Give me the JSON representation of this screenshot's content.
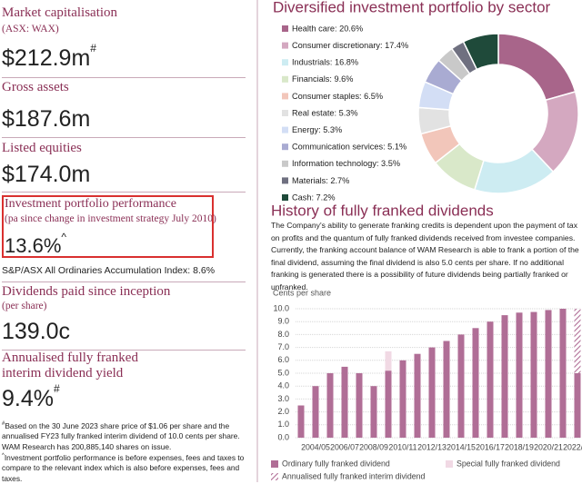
{
  "left": {
    "stats": [
      {
        "label": "Market capitalisation",
        "sublabel": "(ASX: WAX)",
        "value": "$212.9m",
        "sup": "#"
      },
      {
        "label": "Gross assets",
        "value": "$187.6m"
      },
      {
        "label": "Listed equities",
        "value": "$174.0m"
      },
      {
        "label": "Investment portfolio performance",
        "sublabel": "(pa since change in investment strategy July 2010)",
        "value": "13.6%",
        "sup": "^",
        "note": "S&P/ASX All Ordinaries Accumulation Index: 8.6%"
      },
      {
        "label": "Dividends paid since inception",
        "sublabel": "(per share)",
        "value": "139.0c"
      },
      {
        "label": "Annualised fully franked interim dividend yield",
        "value": "9.4%",
        "sup": "#"
      }
    ],
    "footnotes": [
      {
        "mark": "#",
        "text": "Based on the 30 June 2023 share price of $1.06 per share and the annualised FY23 fully franked interim dividend of 10.0 cents per share. WAM Research has 200,885,140 shares on issue."
      },
      {
        "mark": "^",
        "text": "Investment portfolio performance is before expenses, fees and taxes to compare to the relevant index which is also before expenses, fees and taxes."
      }
    ]
  },
  "chart_data": [
    {
      "type": "pie",
      "title": "Diversified investment portfolio by sector",
      "value_labels": [
        "Health care: 20.6%",
        "Consumer discretionary: 17.4%",
        "Industrials: 16.8%",
        "Financials: 9.6%",
        "Consumer staples: 6.5%",
        "Real estate: 5.3%",
        "Energy: 5.3%",
        "Communication services: 5.1%",
        "Information technology: 3.5%",
        "Materials: 2.7%",
        "Cash: 7.2%"
      ],
      "values": [
        20.6,
        17.4,
        16.8,
        9.6,
        6.5,
        5.3,
        5.3,
        5.1,
        3.5,
        2.7,
        7.2
      ],
      "colors": [
        "#a8658a",
        "#d4a8c0",
        "#cdecf2",
        "#d9e8c9",
        "#f2c6ba",
        "#e2e2e2",
        "#d3def5",
        "#a9abd2",
        "#c9c9c9",
        "#6f7080",
        "#1f4a3a"
      ],
      "donut": true
    },
    {
      "type": "bar",
      "title": "History of fully franked dividends",
      "text": "The Company's ability to generate franking credits is dependent upon the payment of tax on profits and the quantum of fully franked dividends received from investee companies. Currently, the franking account balance of WAM Research is able to frank a portion of the final dividend, assuming the final dividend is also 5.0 cents per share. If no additional franking is generated there is a possibility of future dividends being partially franked or unfranked.",
      "y_label": "Cents per share",
      "categories": [
        null,
        "2004/05",
        null,
        "2006/07",
        null,
        "2008/09",
        null,
        "2010/11",
        null,
        "2012/13",
        null,
        "2014/15",
        null,
        "2016/17",
        null,
        "2018/19",
        null,
        "2020/21",
        null,
        "2022/23"
      ],
      "series": [
        {
          "name": "Ordinary fully franked dividend",
          "color": "#b06e96",
          "values": [
            2.5,
            4.0,
            5.0,
            5.5,
            5.0,
            4.0,
            5.2,
            6.0,
            6.5,
            7.0,
            7.5,
            8.0,
            8.5,
            9.0,
            9.5,
            9.7,
            9.75,
            9.9,
            10.0,
            5.0
          ]
        },
        {
          "name": "Special fully franked dividend",
          "color": "#f1d9e4",
          "values": [
            null,
            null,
            null,
            null,
            null,
            null,
            1.5,
            null,
            null,
            null,
            null,
            null,
            null,
            null,
            null,
            null,
            null,
            null,
            null,
            null
          ]
        },
        {
          "name": "Annualised fully franked interim dividend",
          "color": "#b06e96",
          "hatch": true,
          "values": [
            null,
            null,
            null,
            null,
            null,
            null,
            null,
            null,
            null,
            null,
            null,
            null,
            null,
            null,
            null,
            null,
            null,
            null,
            null,
            5.0
          ]
        }
      ],
      "stacked": true,
      "ylim": [
        0,
        10
      ],
      "yticks": [
        {
          "value": 0,
          "label": "0.0"
        },
        {
          "value": 1,
          "label": "1.0"
        },
        {
          "value": 2,
          "label": "2.0"
        },
        {
          "value": 3,
          "label": "3.0"
        },
        {
          "value": 4,
          "label": "4.0"
        },
        {
          "value": 5,
          "label": "5.0"
        },
        {
          "value": 6,
          "label": "6.0"
        },
        {
          "value": 7,
          "label": "7.0"
        },
        {
          "value": 8,
          "label": "8.0"
        },
        {
          "value": 9,
          "label": "9.0"
        },
        {
          "value": 10,
          "label": "10.0"
        }
      ],
      "grid": true
    }
  ]
}
